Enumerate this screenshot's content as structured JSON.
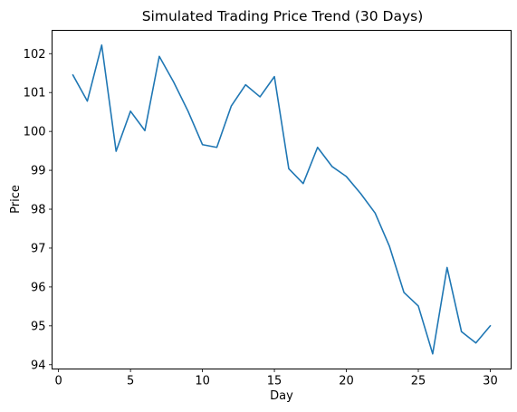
{
  "chart_data": {
    "type": "line",
    "title": "Simulated Trading Price Trend (30 Days)",
    "xlabel": "Day",
    "ylabel": "Price",
    "xlim": [
      -0.45,
      31.45
    ],
    "ylim": [
      93.89,
      102.6
    ],
    "xticks": [
      0,
      5,
      10,
      15,
      20,
      25,
      30
    ],
    "yticks": [
      94,
      95,
      96,
      97,
      98,
      99,
      100,
      101,
      102
    ],
    "grid": false,
    "color": "#1f77b4",
    "series": [
      {
        "x": [
          1,
          2,
          3,
          4,
          5,
          6,
          7,
          8,
          9,
          10,
          11,
          12,
          13,
          14,
          15,
          16,
          17,
          18,
          19,
          20,
          21,
          22,
          23,
          24,
          25,
          26,
          27,
          28,
          29,
          30
        ],
        "values": [
          101.45,
          100.78,
          102.22,
          99.49,
          100.52,
          100.02,
          101.93,
          101.27,
          100.52,
          99.66,
          99.59,
          100.65,
          101.2,
          100.89,
          101.41,
          99.04,
          98.66,
          99.59,
          99.1,
          98.84,
          98.4,
          97.9,
          97.04,
          95.86,
          95.51,
          94.28,
          96.5,
          94.85,
          94.56,
          95.0
        ]
      }
    ]
  }
}
